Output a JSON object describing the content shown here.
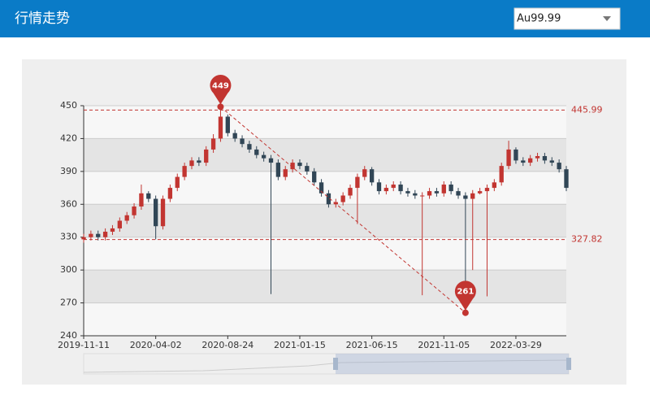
{
  "header": {
    "title": "行情走势"
  },
  "selector": {
    "value": "Au99.99"
  },
  "chart_data": {
    "type": "candlestick",
    "categories": [
      "2019-11-11",
      null,
      null,
      null,
      null,
      null,
      null,
      null,
      null,
      null,
      "2020-04-02",
      null,
      null,
      null,
      null,
      null,
      null,
      null,
      null,
      null,
      "2020-08-24",
      null,
      null,
      null,
      null,
      null,
      null,
      null,
      null,
      null,
      "2021-01-15",
      null,
      null,
      null,
      null,
      null,
      null,
      null,
      null,
      null,
      "2021-06-15",
      null,
      null,
      null,
      null,
      null,
      null,
      null,
      null,
      null,
      "2021-11-05",
      null,
      null,
      null,
      null,
      null,
      null,
      null,
      null,
      null,
      "2022-03-29",
      null,
      null,
      null,
      null,
      null,
      null,
      null
    ],
    "open": [
      328,
      330,
      333,
      330,
      335,
      338,
      345,
      350,
      358,
      370,
      365,
      340,
      365,
      375,
      385,
      395,
      400,
      398,
      410,
      420,
      440,
      425,
      420,
      415,
      410,
      405,
      402,
      398,
      385,
      392,
      398,
      395,
      390,
      380,
      370,
      360,
      362,
      368,
      375,
      385,
      392,
      380,
      372,
      375,
      378,
      372,
      370,
      368,
      368,
      372,
      370,
      378,
      372,
      368,
      365,
      370,
      372,
      375,
      380,
      395,
      410,
      400,
      398,
      402,
      404,
      400,
      398,
      392
    ],
    "high": [
      333,
      336,
      336,
      338,
      341,
      348,
      353,
      361,
      378,
      372,
      368,
      368,
      378,
      388,
      398,
      403,
      403,
      413,
      424,
      449,
      442,
      428,
      423,
      418,
      413,
      408,
      405,
      401,
      395,
      401,
      401,
      398,
      393,
      383,
      373,
      365,
      371,
      378,
      388,
      395,
      394,
      383,
      378,
      381,
      381,
      375,
      373,
      371,
      375,
      375,
      381,
      381,
      375,
      371,
      373,
      375,
      378,
      383,
      398,
      418,
      412,
      403,
      405,
      407,
      407,
      403,
      401,
      395
    ],
    "low": [
      325,
      327,
      327,
      327,
      332,
      335,
      342,
      347,
      355,
      362,
      328,
      337,
      362,
      372,
      382,
      392,
      395,
      395,
      407,
      417,
      422,
      417,
      412,
      407,
      402,
      399,
      278,
      382,
      382,
      389,
      392,
      387,
      377,
      367,
      357,
      357,
      359,
      365,
      342,
      382,
      377,
      369,
      369,
      372,
      369,
      367,
      365,
      277,
      365,
      367,
      367,
      369,
      365,
      261,
      300,
      369,
      276,
      372,
      377,
      392,
      397,
      395,
      395,
      399,
      397,
      395,
      389,
      372
    ],
    "close": [
      330,
      333,
      330,
      335,
      338,
      345,
      350,
      358,
      370,
      365,
      340,
      365,
      375,
      385,
      395,
      400,
      398,
      410,
      420,
      440,
      425,
      420,
      415,
      410,
      405,
      402,
      398,
      385,
      392,
      398,
      395,
      390,
      380,
      370,
      360,
      362,
      368,
      375,
      385,
      392,
      380,
      372,
      375,
      378,
      372,
      370,
      368,
      368,
      372,
      370,
      378,
      372,
      368,
      365,
      370,
      372,
      375,
      380,
      395,
      410,
      400,
      398,
      402,
      404,
      400,
      398,
      392,
      375
    ],
    "colors": {
      "up": "#c23531",
      "down": "#314656",
      "mark": "#c23531"
    },
    "ylim": [
      240,
      450
    ],
    "yticks": [
      240,
      270,
      300,
      330,
      360,
      390,
      420,
      450
    ],
    "grid": true,
    "mark_points": [
      {
        "value": 449
      },
      {
        "value": 261
      }
    ],
    "mark_lines": [
      445.99,
      327.82
    ]
  }
}
